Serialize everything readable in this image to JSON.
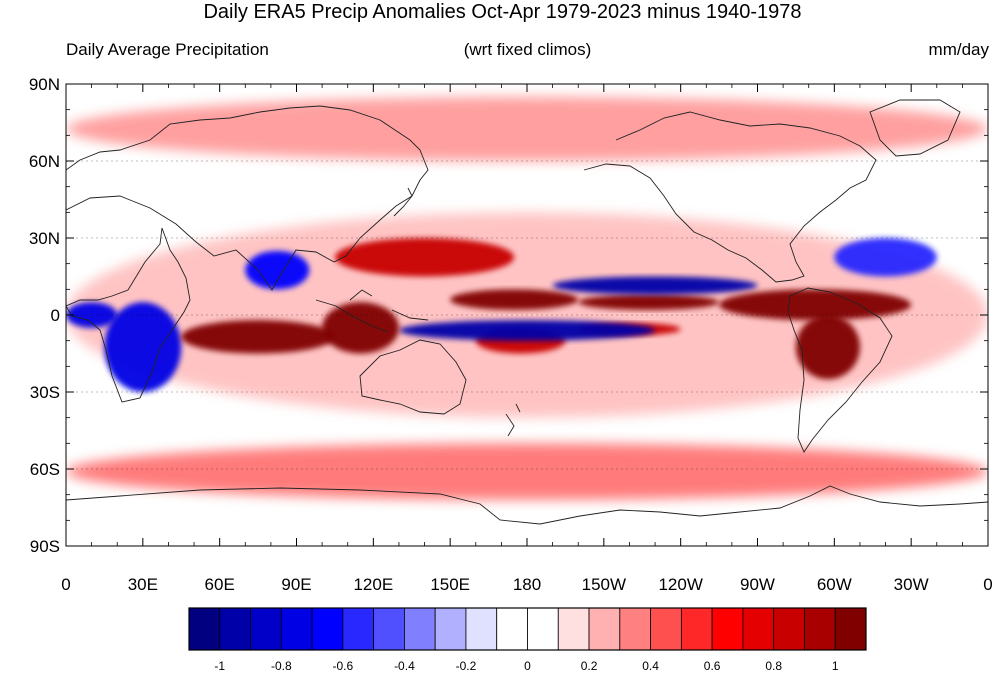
{
  "title": "Daily ERA5 Precip Anomalies Oct-Apr 1979-2023 minus 1940-1978",
  "left_label": "Daily Average Precipitation",
  "center_label": "(wrt fixed climos)",
  "right_label": "mm/day",
  "lat_ticks": [
    "90N",
    "60N",
    "30N",
    "0",
    "30S",
    "60S",
    "90S"
  ],
  "lon_ticks": [
    "0",
    "30E",
    "60E",
    "90E",
    "120E",
    "150E",
    "180",
    "150W",
    "120W",
    "90W",
    "60W",
    "30W",
    "0"
  ],
  "colorbar": {
    "colors": [
      "#000080",
      "#0000a8",
      "#0000c8",
      "#0000e4",
      "#0000ff",
      "#2828ff",
      "#5050ff",
      "#8080ff",
      "#b0b0ff",
      "#e0e0ff",
      "#ffffff",
      "#ffffff",
      "#ffe0e0",
      "#ffb0b0",
      "#ff8080",
      "#ff5050",
      "#ff2828",
      "#ff0000",
      "#e40000",
      "#c80000",
      "#a80000",
      "#800000"
    ],
    "labels": [
      "-1",
      "-0.8",
      "-0.6",
      "-0.4",
      "-0.2",
      "0",
      "0.2",
      "0.4",
      "0.6",
      "0.8",
      "1"
    ]
  },
  "map_data": {
    "type": "heatmap",
    "projection": "equirectangular",
    "lon_range": [
      0,
      360
    ],
    "lat_range": [
      -90,
      90
    ],
    "units": "mm/day",
    "anomaly_regions": [
      {
        "lon": [
          255,
          330
        ],
        "lat": [
          -2,
          10
        ],
        "value": 1.2
      },
      {
        "lon": [
          150,
          200
        ],
        "lat": [
          2,
          10
        ],
        "value": 1.0
      },
      {
        "lon": [
          200,
          255
        ],
        "lat": [
          2,
          8
        ],
        "value": 1.0
      },
      {
        "lon": [
          45,
          105
        ],
        "lat": [
          -15,
          -2
        ],
        "value": 1.0
      },
      {
        "lon": [
          100,
          130
        ],
        "lat": [
          -15,
          5
        ],
        "value": 1.3
      },
      {
        "lon": [
          160,
          195
        ],
        "lat": [
          -15,
          -5
        ],
        "value": 0.8
      },
      {
        "lon": [
          200,
          240
        ],
        "lat": [
          -8,
          -3
        ],
        "value": 0.8
      },
      {
        "lon": [
          285,
          310
        ],
        "lat": [
          -25,
          0
        ],
        "value": 1.0
      },
      {
        "lon": [
          105,
          175
        ],
        "lat": [
          15,
          30
        ],
        "value": 0.8
      },
      {
        "lon": [
          130,
          230
        ],
        "lat": [
          -10,
          -2
        ],
        "value": -1.0
      },
      {
        "lon": [
          190,
          270
        ],
        "lat": [
          8,
          15
        ],
        "value": -1.0
      },
      {
        "lon": [
          0,
          20
        ],
        "lat": [
          -5,
          5
        ],
        "value": -0.8
      },
      {
        "lon": [
          15,
          45
        ],
        "lat": [
          -30,
          5
        ],
        "value": -0.8
      },
      {
        "lon": [
          70,
          95
        ],
        "lat": [
          10,
          25
        ],
        "value": -0.7
      },
      {
        "lon": [
          300,
          340
        ],
        "lat": [
          15,
          30
        ],
        "value": -0.6
      },
      {
        "lon": [
          0,
          360
        ],
        "lat": [
          -72,
          -50
        ],
        "value": 0.4
      },
      {
        "lon": [
          0,
          360
        ],
        "lat": [
          -40,
          40
        ],
        "value": 0.2
      },
      {
        "lon": [
          0,
          360
        ],
        "lat": [
          60,
          85
        ],
        "value": 0.3
      }
    ]
  }
}
